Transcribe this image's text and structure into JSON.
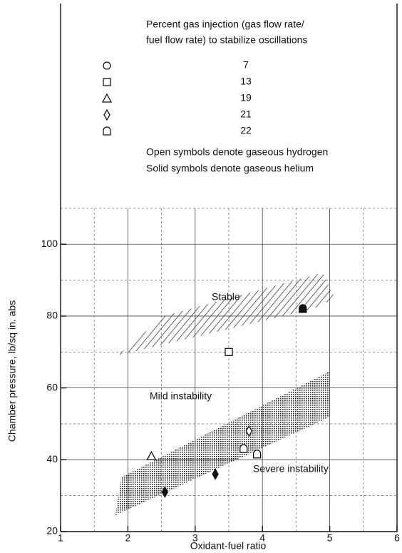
{
  "chart_data": {
    "type": "scatter",
    "legend_title": [
      "Percent gas injection (gas flow rate/",
      "fuel flow rate) to stabilize oscillations"
    ],
    "notes": [
      "Open symbols denote gaseous hydrogen",
      "Solid symbols denote gaseous helium"
    ],
    "x_label": "Oxidant-fuel ratio",
    "y_label": "Chamber pressure, lb/sq in. abs",
    "annotations": [
      "Stable",
      "Mild instability",
      "Severe instability"
    ],
    "xlim": [
      1,
      6
    ],
    "xticks": [
      1,
      2,
      3,
      4,
      5,
      6
    ],
    "xminor": [
      1.5,
      2.5,
      3.5,
      4.5,
      5.5
    ],
    "ylim": [
      20,
      167
    ],
    "yticks": [
      20,
      40,
      60,
      80,
      100
    ],
    "yminor": [
      30,
      50,
      70,
      90,
      110
    ],
    "grid": true,
    "color": "#111",
    "series": [
      {
        "name": "7",
        "marker": "circle",
        "x": [],
        "y": [],
        "filled": []
      },
      {
        "name": "13",
        "marker": "square",
        "x": [
          3.5
        ],
        "y": [
          70
        ],
        "filled": [
          false
        ]
      },
      {
        "name": "19",
        "marker": "triangle",
        "x": [
          2.35
        ],
        "y": [
          41
        ],
        "filled": [
          false
        ]
      },
      {
        "name": "21",
        "marker": "diamond",
        "x": [
          3.8,
          2.55,
          3.3
        ],
        "y": [
          48,
          31,
          36
        ],
        "filled": [
          false,
          true,
          true
        ]
      },
      {
        "name": "22",
        "marker": "d-shape",
        "x": [
          3.72,
          3.92,
          4.6
        ],
        "y": [
          43,
          41.5,
          82
        ],
        "filled": [
          false,
          false,
          true
        ]
      }
    ]
  }
}
